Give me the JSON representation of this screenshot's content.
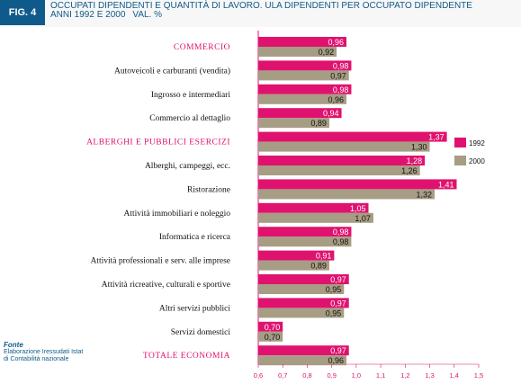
{
  "figure": {
    "tag": "FIG. 4",
    "title_line1": "OCCUPATI DIPENDENTI E QUANTITÀ DI LAVORO. ULA DIPENDENTI PER OCCUPATO DIPENDENTE",
    "title_line2a": "ANNI 1992 E 2000",
    "title_line2b": "VAL. %"
  },
  "source": {
    "title": "Fonte",
    "line1": "Elaborazione Iressudati Istat",
    "line2": "di Contabilità nazionale"
  },
  "colors": {
    "brand_blue": "#0f5a8a",
    "series_1992": "#e0126f",
    "series_2000": "#a79d84",
    "highlight_label": "#e0126f",
    "background": "#f7f7f7"
  },
  "chart_data": {
    "type": "bar",
    "orientation": "horizontal",
    "title": "OCCUPATI DIPENDENTI E QUANTITÀ DI LAVORO. ULA DIPENDENTI PER OCCUPATO DIPENDENTE ANNI 1992 E 2000 VAL. %",
    "categories": [
      "COMMERCIO",
      "Autoveicoli e carburanti (vendita)",
      "Ingrosso e intermediari",
      "Commercio al dettaglio",
      "ALBERGHI E PUBBLICI ESERCIZI",
      "Alberghi, campeggi, ecc.",
      "Ristorazione",
      "Attività immobiliari e noleggio",
      "Informatica e ricerca",
      "Attività professionali e serv. alle imprese",
      "Attività ricreative, culturali e sportive",
      "Altri servizi pubblici",
      "Servizi domestici",
      "TOTALE ECONOMIA"
    ],
    "highlighted_categories": [
      "COMMERCIO",
      "ALBERGHI E PUBBLICI ESERCIZI",
      "TOTALE ECONOMIA"
    ],
    "series": [
      {
        "name": "1992",
        "value_labels": [
          "0,96",
          "0,98",
          "0,98",
          "0,94",
          "1,37",
          "1,28",
          "1,41",
          "1,05",
          "0,98",
          "0,91",
          "0,97",
          "0,97",
          "0,70",
          "0,97"
        ],
        "values": [
          0.96,
          0.98,
          0.98,
          0.94,
          1.37,
          1.28,
          1.41,
          1.05,
          0.98,
          0.91,
          0.97,
          0.97,
          0.7,
          0.97
        ]
      },
      {
        "name": "2000",
        "value_labels": [
          "0,92",
          "0,97",
          "0,96",
          "0,89",
          "1,30",
          "1,26",
          "1,32",
          "1,07",
          "0,98",
          "0,89",
          "0,95",
          "0,95",
          "0,70",
          "0,96"
        ],
        "values": [
          0.92,
          0.97,
          0.96,
          0.89,
          1.3,
          1.26,
          1.32,
          1.07,
          0.98,
          0.89,
          0.95,
          0.95,
          0.7,
          0.96
        ]
      }
    ],
    "xlim": [
      0.6,
      1.5
    ],
    "xticks": [
      0.6,
      0.7,
      0.8,
      0.9,
      1.0,
      1.1,
      1.2,
      1.3,
      1.4,
      1.5
    ],
    "xtick_labels": [
      "0,6",
      "0,7",
      "0,8",
      "0,9",
      "1,0",
      "1,1",
      "1,2",
      "1,3",
      "1,4",
      "1,5"
    ],
    "grid": false,
    "legend": {
      "placement": "right",
      "entries": [
        "1992",
        "2000"
      ]
    }
  }
}
